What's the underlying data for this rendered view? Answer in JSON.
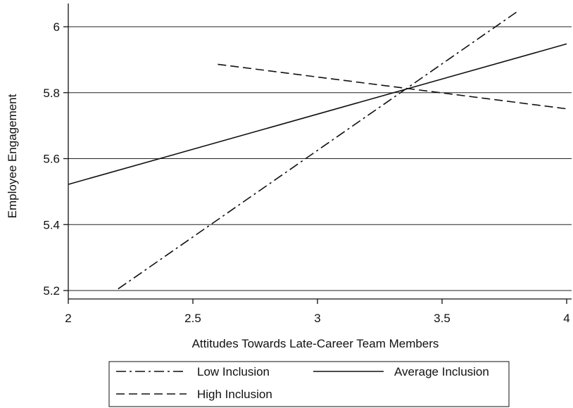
{
  "chart_data": {
    "type": "line",
    "title": "",
    "xlabel": "Attitudes Towards Late-Career Team Members",
    "ylabel": "Employee Engagement",
    "xlim": [
      2,
      4.03
    ],
    "ylim": [
      5.18,
      6.07
    ],
    "xticks": [
      2,
      2.5,
      3,
      3.5,
      4
    ],
    "xtick_labels": [
      "2",
      "2.5",
      "3",
      "3.5",
      "4"
    ],
    "yticks": [
      5.2,
      5.4,
      5.6,
      5.8,
      6
    ],
    "ytick_labels": [
      "5.2",
      "5.4",
      "5.6",
      "5.8",
      "6"
    ],
    "grid": "horizontal",
    "legend_position": "bottom",
    "series": [
      {
        "name": "Low Inclusion",
        "style": "dash-dot",
        "color": "#111111",
        "x": [
          2.2,
          3.8
        ],
        "y": [
          5.205,
          6.045
        ]
      },
      {
        "name": "Average Inclusion",
        "style": "solid",
        "color": "#111111",
        "x": [
          2.0,
          4.0
        ],
        "y": [
          5.522,
          5.948
        ]
      },
      {
        "name": "High Inclusion",
        "style": "dashed",
        "color": "#111111",
        "x": [
          2.6,
          4.0
        ],
        "y": [
          5.886,
          5.751
        ]
      }
    ]
  }
}
